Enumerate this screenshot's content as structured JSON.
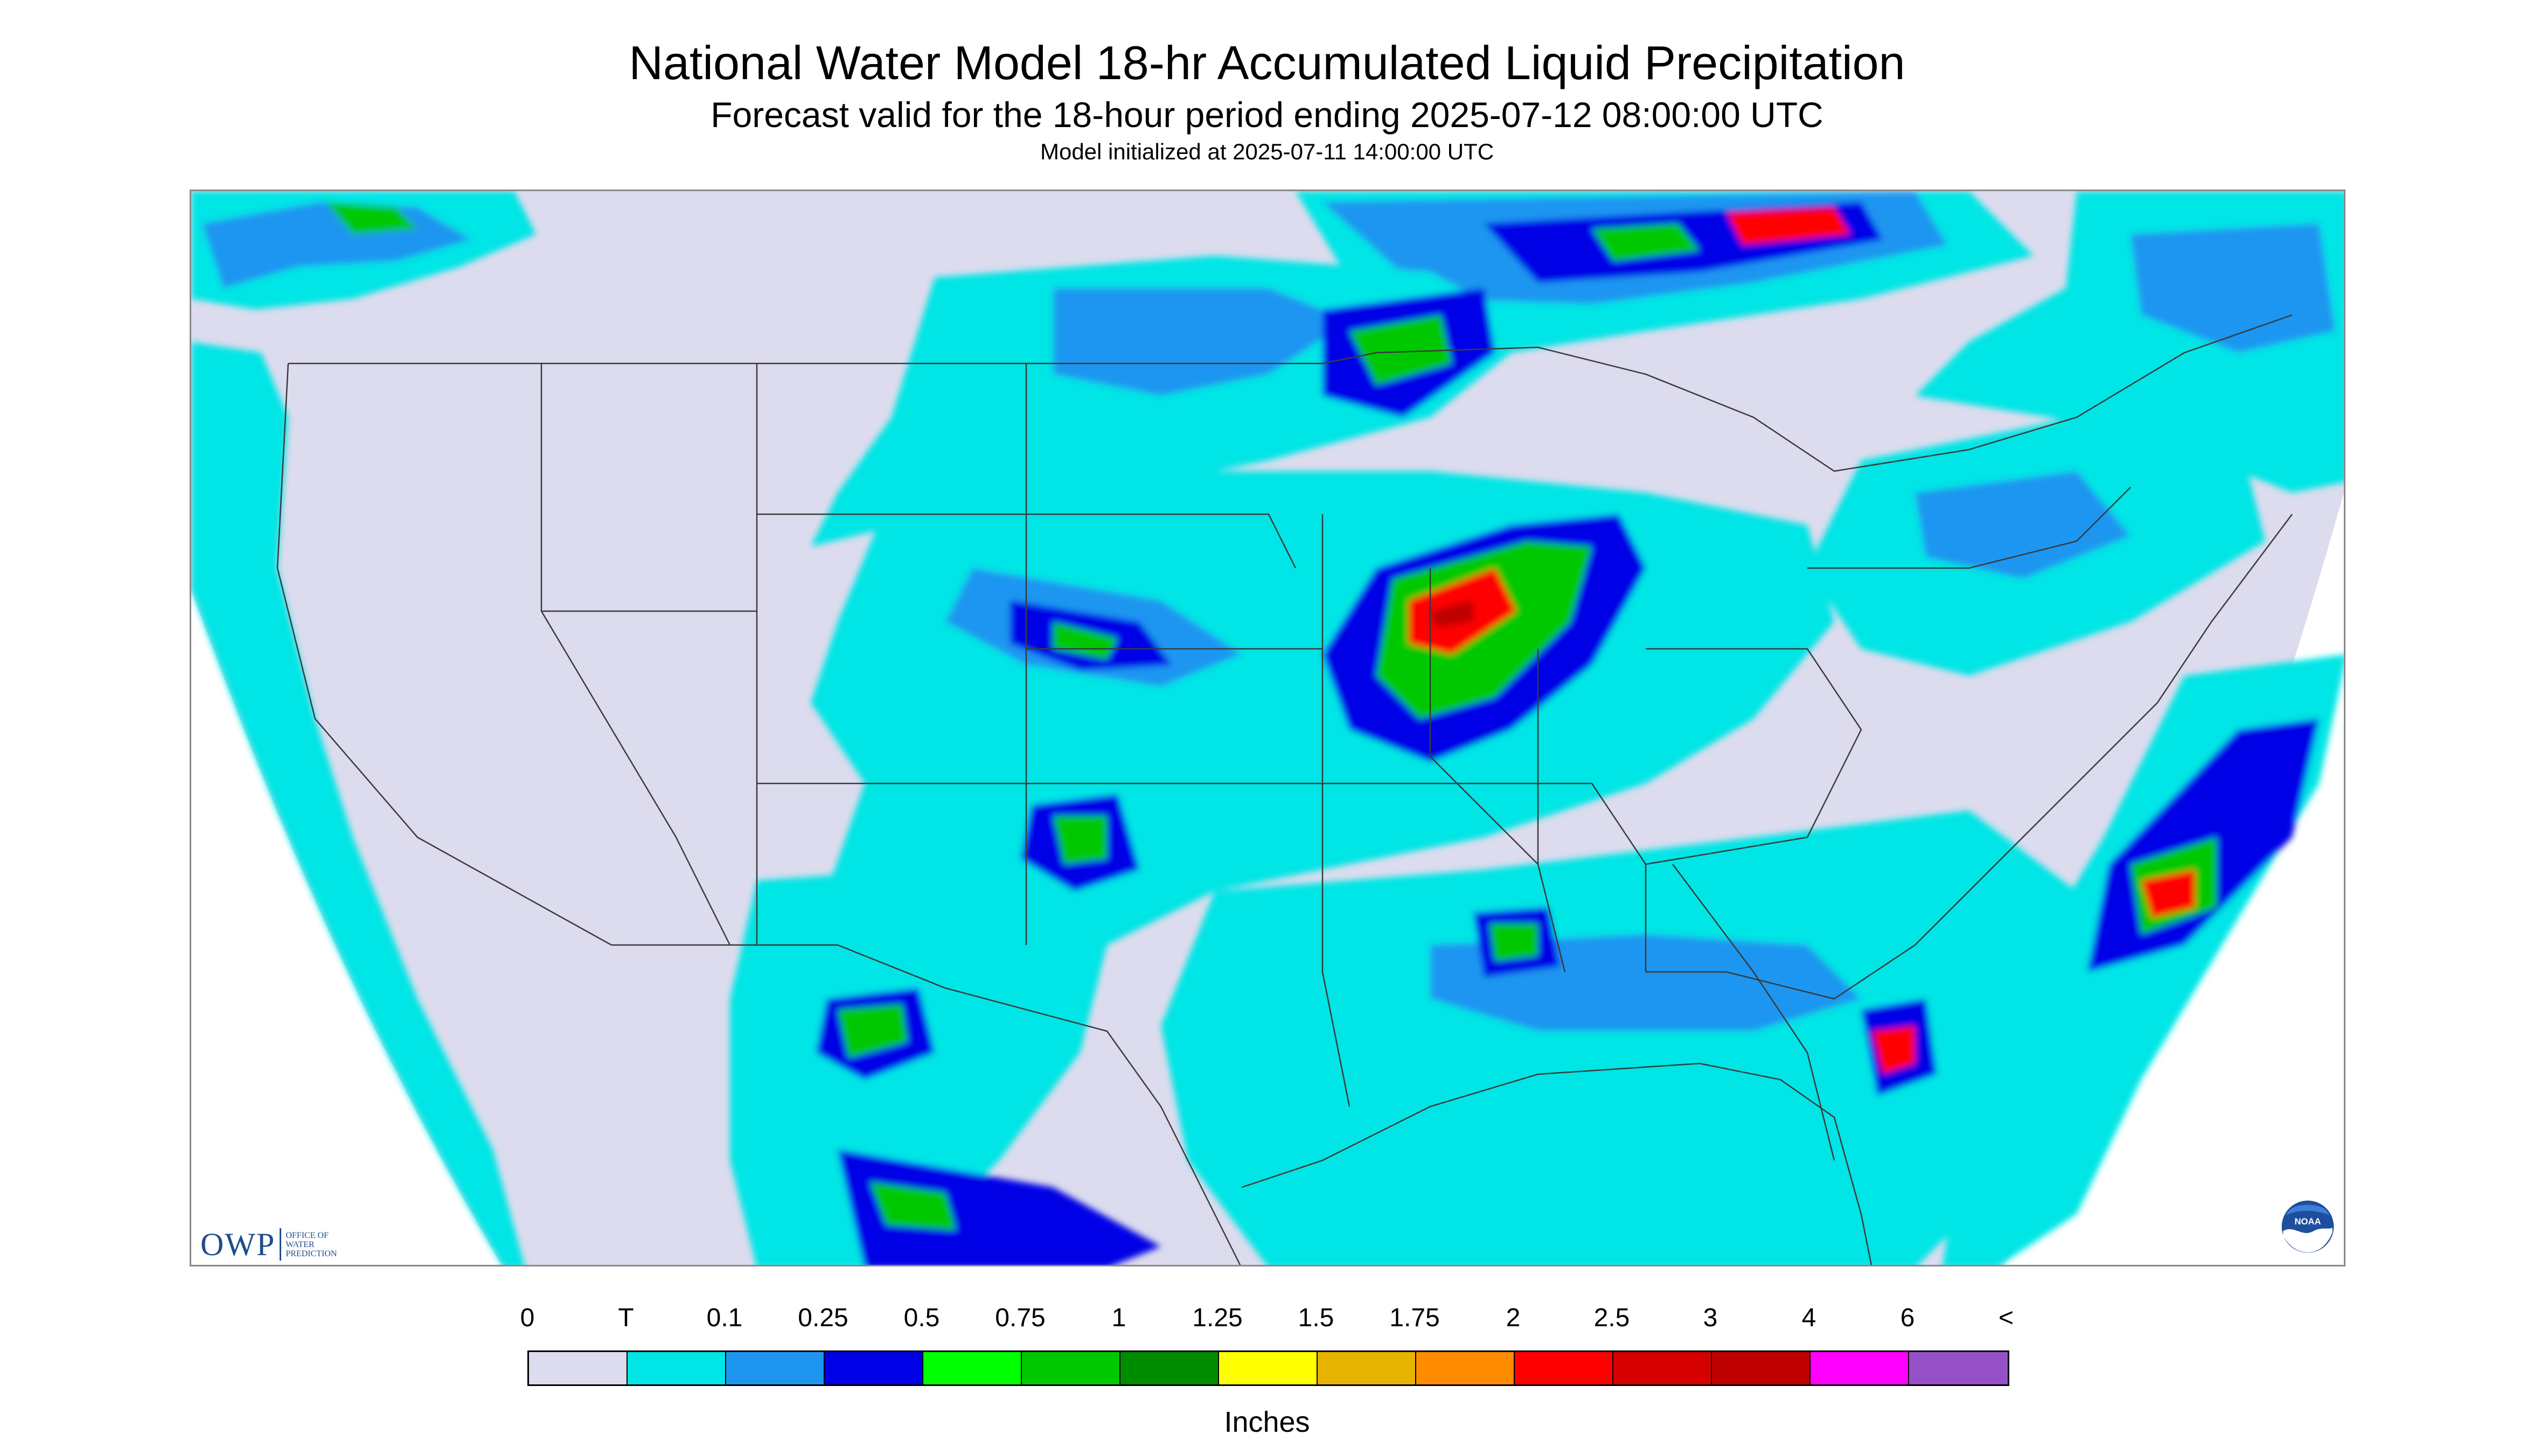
{
  "title": "National Water Model 18-hr Accumulated Liquid Precipitation",
  "subtitle": "Forecast valid for the 18-hour period ending 2025-07-12 08:00:00 UTC",
  "init_line": "Model initialized at 2025-07-11 14:00:00 UTC",
  "logo_left": {
    "mark": "OWP",
    "sub_lines": [
      "OFFICE OF",
      "WATER",
      "PREDICTION"
    ]
  },
  "logo_right": {
    "text": "NOAA",
    "icon": "noaa-logo-icon"
  },
  "map": {
    "background_color": "#dcdcee",
    "outside_color": "#ffffff",
    "boundary_color": "#3a3a3a"
  },
  "legend": {
    "labels": [
      "0",
      "T",
      "0.1",
      "0.25",
      "0.5",
      "0.75",
      "1",
      "1.25",
      "1.5",
      "1.75",
      "2",
      "2.5",
      "3",
      "4",
      "6",
      "<"
    ],
    "colors": [
      "#dcdcee",
      "#00e5e5",
      "#1e96f0",
      "#0000e6",
      "#00ff00",
      "#00c800",
      "#008c00",
      "#ffff00",
      "#e6b400",
      "#ff8c00",
      "#ff0000",
      "#d70000",
      "#be0000",
      "#ff00ff",
      "#9650c8"
    ],
    "units": "Inches"
  }
}
